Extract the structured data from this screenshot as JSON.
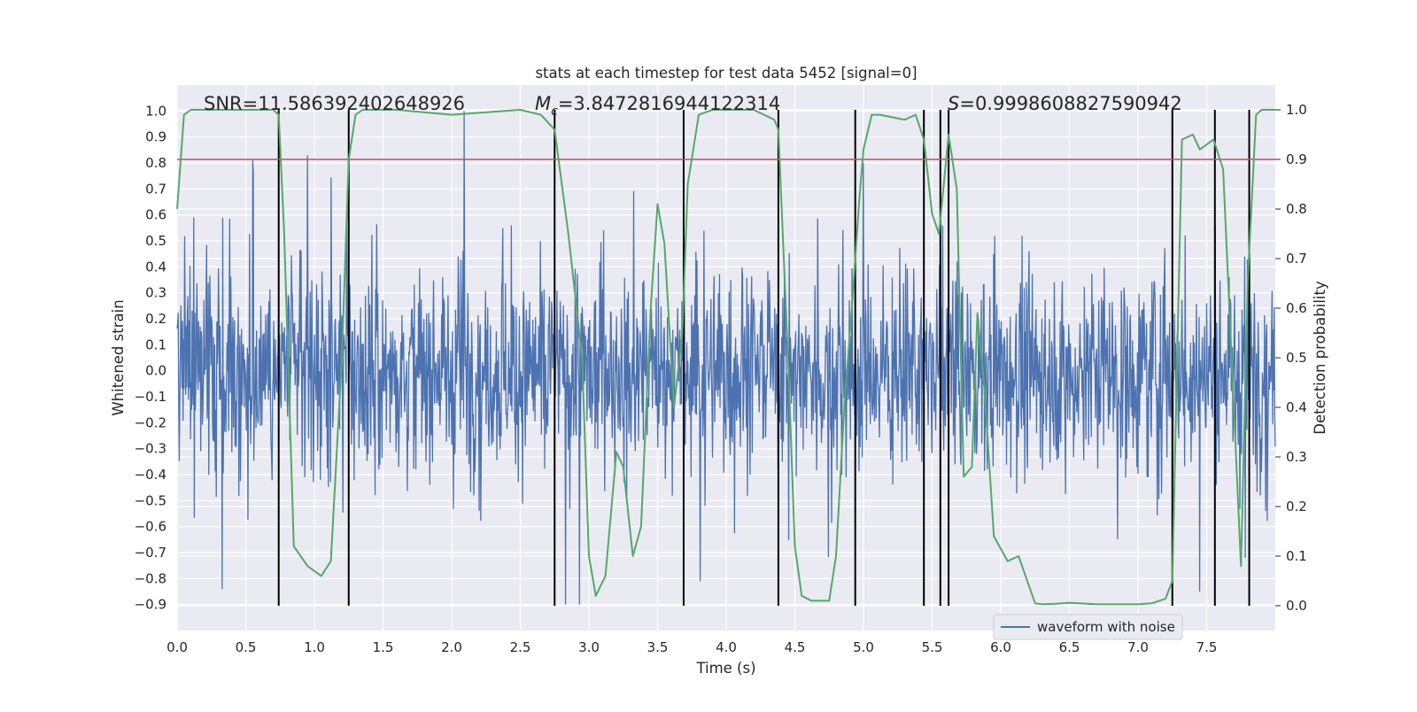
{
  "chart_data": {
    "type": "line",
    "title": "stats at each timestep for test data 5452 [signal=0]",
    "xlabel": "Time (s)",
    "ylabel": "Whitened strain",
    "y2label": "Detection probability",
    "xlim": [
      0.0,
      8.0
    ],
    "ylim": [
      -1.0,
      1.1
    ],
    "y2lim": [
      -0.05,
      1.05
    ],
    "xticks": [
      "0.0",
      "0.5",
      "1.0",
      "1.5",
      "2.0",
      "2.5",
      "3.0",
      "3.5",
      "4.0",
      "4.5",
      "5.0",
      "5.5",
      "6.0",
      "6.5",
      "7.0",
      "7.5"
    ],
    "yticks": [
      "−0.9",
      "−0.8",
      "−0.7",
      "−0.6",
      "−0.5",
      "−0.4",
      "−0.3",
      "−0.2",
      "−0.1",
      "0.0",
      "0.1",
      "0.2",
      "0.3",
      "0.4",
      "0.5",
      "0.6",
      "0.7",
      "0.8",
      "0.9",
      "1.0"
    ],
    "y2ticks": [
      "0.0",
      "0.1",
      "0.2",
      "0.3",
      "0.4",
      "0.5",
      "0.6",
      "0.7",
      "0.8",
      "0.9",
      "1.0"
    ],
    "grid": true,
    "legend": {
      "position": "lower-right",
      "entries": [
        "waveform with noise"
      ]
    },
    "annotations": {
      "snr": "SNR=11.586392402648926",
      "mc_symbol": "M",
      "mc_sub": "c",
      "mc_value": "=3.8472816944122314",
      "s_symbol": "S",
      "s_value": "=0.9998608827590942"
    },
    "threshold": {
      "axis": "y2",
      "value": 0.9,
      "color": "#c44e52"
    },
    "event_lines_x": [
      0.74,
      1.25,
      2.75,
      3.69,
      4.38,
      4.94,
      5.44,
      5.56,
      5.62,
      7.25,
      7.56,
      7.81
    ],
    "waveform": {
      "name": "waveform with noise",
      "color": "#4c72b0",
      "x_range": [
        0.0,
        8.0
      ],
      "samples": 2048,
      "typical_amplitude": 0.4,
      "peak_positive": 1.0,
      "peak_negative": -0.9,
      "peaks": [
        {
          "x": 0.33,
          "y": -0.84
        },
        {
          "x": 0.55,
          "y": 0.81
        },
        {
          "x": 0.95,
          "y": 0.83
        },
        {
          "x": 2.09,
          "y": 1.0
        },
        {
          "x": 2.83,
          "y": -0.9
        },
        {
          "x": 2.93,
          "y": -0.9
        },
        {
          "x": 3.81,
          "y": -0.81
        },
        {
          "x": 5.0,
          "y": 0.8
        },
        {
          "x": 7.45,
          "y": -0.85
        },
        {
          "x": 7.78,
          "y": -0.72
        }
      ]
    },
    "probability": {
      "name": "detection probability",
      "axis": "y2",
      "color": "#55a868",
      "x": [
        0.0,
        0.05,
        0.1,
        0.2,
        0.5,
        0.7,
        0.74,
        0.78,
        0.85,
        0.9,
        0.95,
        1.05,
        1.12,
        1.2,
        1.25,
        1.3,
        1.35,
        1.4,
        1.6,
        2.0,
        2.5,
        2.65,
        2.75,
        2.85,
        2.95,
        3.0,
        3.05,
        3.12,
        3.2,
        3.25,
        3.32,
        3.38,
        3.45,
        3.5,
        3.55,
        3.62,
        3.68,
        3.72,
        3.8,
        3.9,
        4.2,
        4.35,
        4.38,
        4.45,
        4.5,
        4.55,
        4.62,
        4.68,
        4.75,
        4.8,
        4.86,
        4.92,
        4.97,
        5.0,
        5.06,
        5.12,
        5.3,
        5.38,
        5.44,
        5.5,
        5.55,
        5.62,
        5.68,
        5.73,
        5.79,
        5.83,
        5.88,
        5.95,
        6.05,
        6.13,
        6.25,
        6.3,
        6.4,
        6.5,
        6.7,
        7.0,
        7.1,
        7.2,
        7.25,
        7.32,
        7.4,
        7.45,
        7.55,
        7.62,
        7.75,
        7.8,
        7.86,
        7.9,
        8.0
      ],
      "y": [
        0.8,
        0.99,
        1.0,
        1.0,
        1.0,
        1.0,
        0.99,
        0.75,
        0.12,
        0.1,
        0.08,
        0.06,
        0.09,
        0.5,
        0.9,
        0.99,
        1.0,
        1.0,
        1.0,
        0.99,
        1.0,
        0.99,
        0.96,
        0.75,
        0.5,
        0.1,
        0.02,
        0.06,
        0.31,
        0.28,
        0.1,
        0.16,
        0.6,
        0.81,
        0.73,
        0.4,
        0.55,
        0.85,
        0.99,
        1.0,
        1.0,
        0.98,
        0.96,
        0.5,
        0.12,
        0.02,
        0.01,
        0.01,
        0.01,
        0.1,
        0.4,
        0.62,
        0.82,
        0.92,
        0.99,
        0.99,
        0.98,
        0.99,
        0.94,
        0.79,
        0.75,
        0.95,
        0.84,
        0.26,
        0.28,
        0.59,
        0.44,
        0.14,
        0.09,
        0.1,
        0.005,
        0.003,
        0.004,
        0.006,
        0.003,
        0.003,
        0.005,
        0.014,
        0.05,
        0.94,
        0.95,
        0.92,
        0.94,
        0.88,
        0.08,
        0.66,
        0.99,
        1.0,
        1.0
      ]
    }
  }
}
